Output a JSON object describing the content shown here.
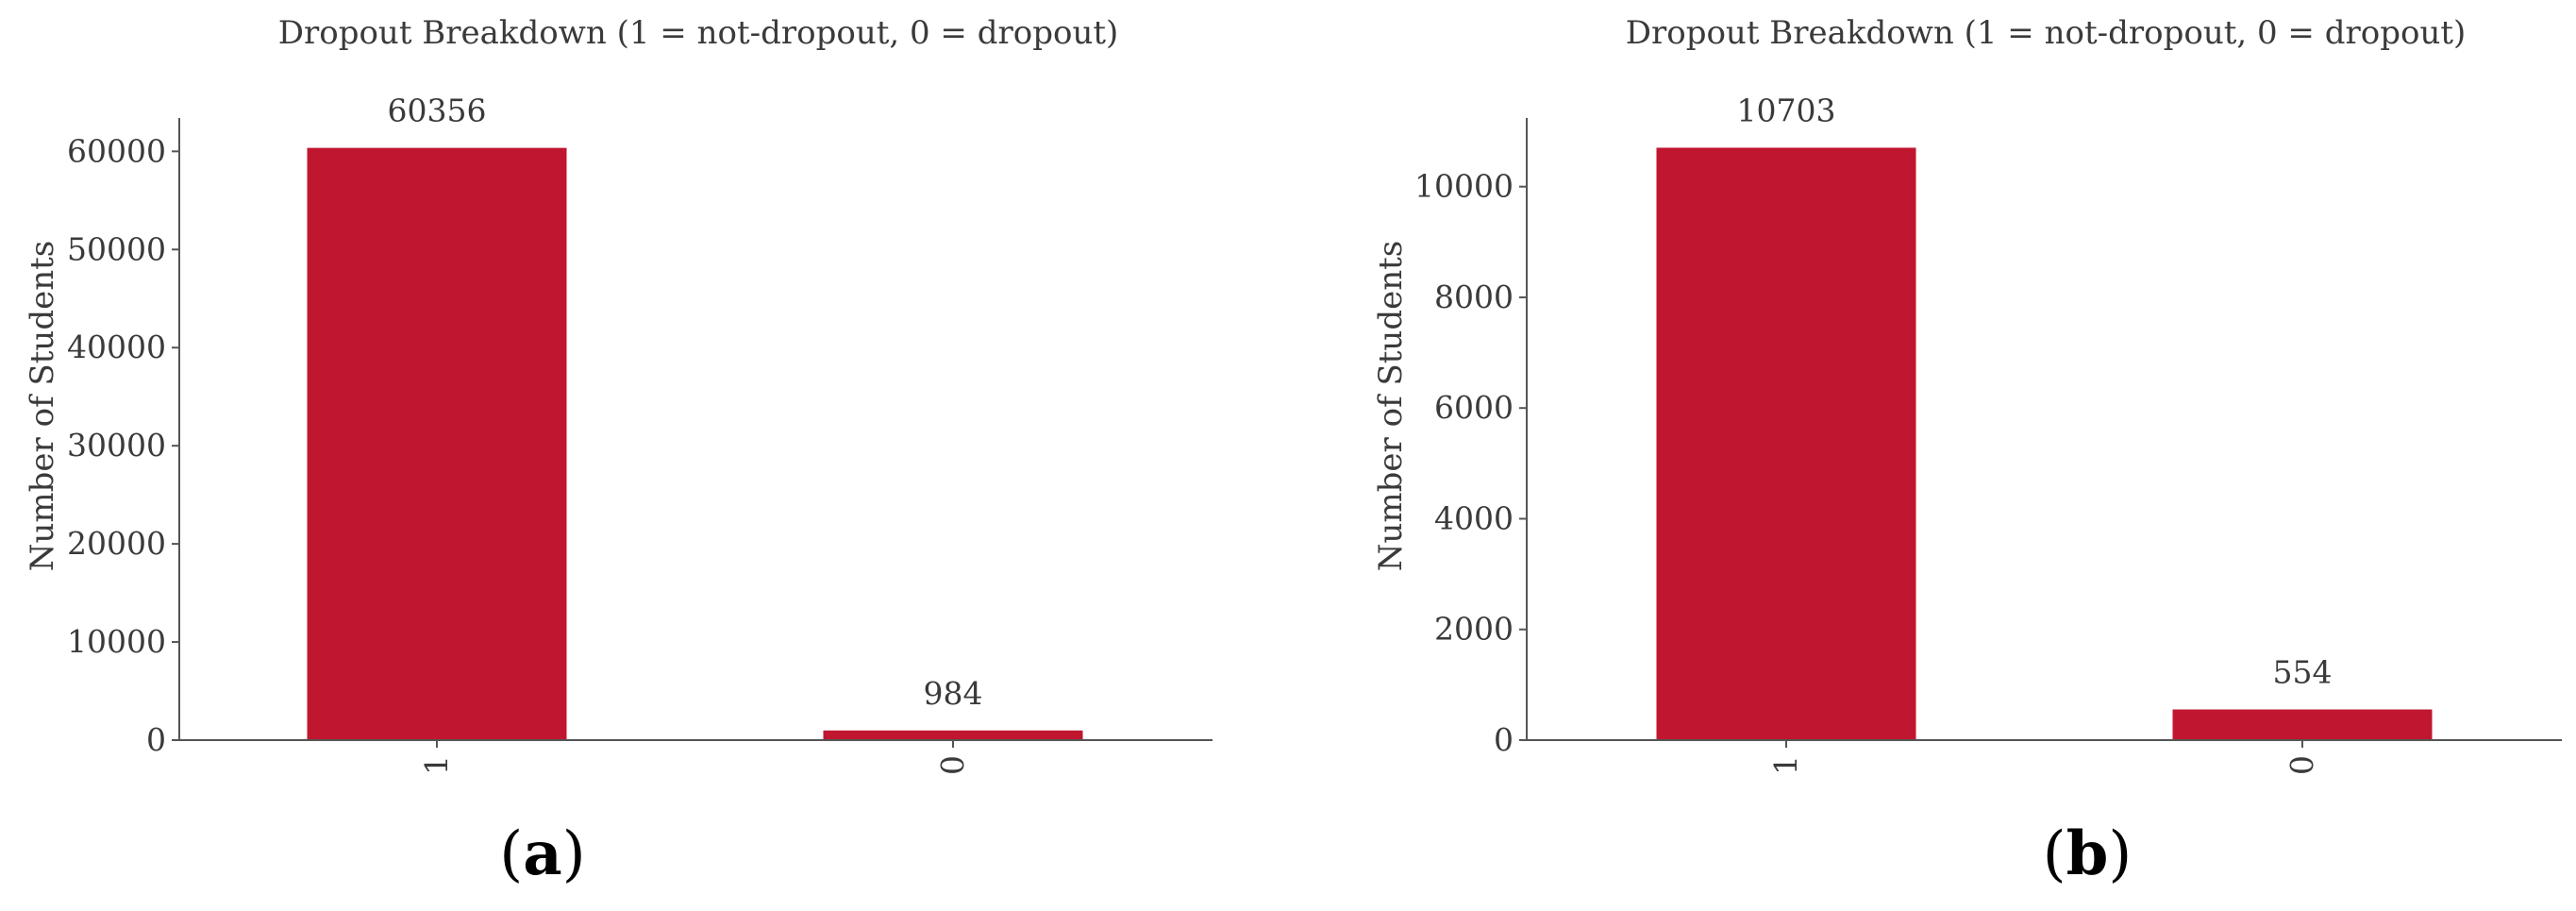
{
  "colors": {
    "bar": "#c0162f",
    "text": "#3a3a3a",
    "axis": "#555555"
  },
  "chart_data": [
    {
      "type": "bar",
      "panel": "a",
      "title": "Dropout Breakdown (1 = not-dropout, 0 = dropout)",
      "xlabel": "",
      "ylabel": "Number of Students",
      "categories": [
        "1",
        "0"
      ],
      "values": [
        60356,
        984
      ],
      "data_labels": [
        "60356",
        "984"
      ],
      "yticks": [
        0,
        10000,
        20000,
        30000,
        40000,
        50000,
        60000
      ],
      "ytick_labels": [
        "0",
        "10000",
        "20000",
        "30000",
        "40000",
        "50000",
        "60000"
      ],
      "ylim": [
        0,
        63400
      ],
      "grid": false,
      "legend": "none"
    },
    {
      "type": "bar",
      "panel": "b",
      "title": "Dropout Breakdown (1 = not-dropout, 0 = dropout)",
      "xlabel": "",
      "ylabel": "Number of Students",
      "categories": [
        "1",
        "0"
      ],
      "values": [
        10703,
        554
      ],
      "data_labels": [
        "10703",
        "554"
      ],
      "yticks": [
        0,
        2000,
        4000,
        6000,
        8000,
        10000
      ],
      "ytick_labels": [
        "0",
        "2000",
        "4000",
        "6000",
        "8000",
        "10000"
      ],
      "ylim": [
        0,
        11240
      ],
      "grid": false,
      "legend": "none"
    }
  ],
  "panels": [
    {
      "label_open": "(",
      "label_letter": "a",
      "label_close": ")"
    },
    {
      "label_open": "(",
      "label_letter": "b",
      "label_close": ")"
    }
  ]
}
